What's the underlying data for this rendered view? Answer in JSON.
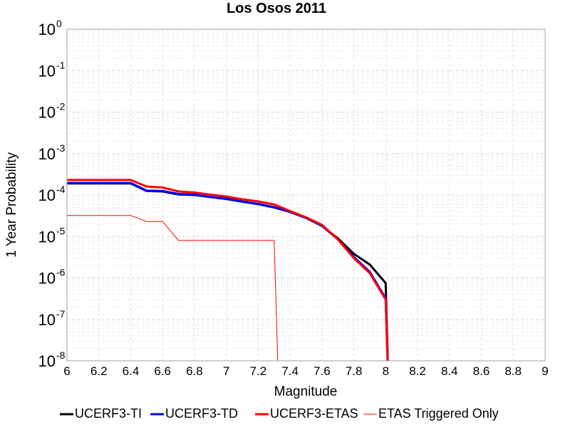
{
  "chart_data": {
    "type": "line",
    "title": "Los Osos 2011",
    "xlabel": "Magnitude",
    "ylabel": "1 Year Probability",
    "xlim": [
      6,
      9
    ],
    "ylim": [
      1e-08,
      1
    ],
    "yscale": "log",
    "grid": true,
    "legend_position": "bottom",
    "x_ticks": [
      "6",
      "6.2",
      "6.4",
      "6.6",
      "6.8",
      "7",
      "7.2",
      "7.4",
      "7.6",
      "7.8",
      "8",
      "8.2",
      "8.4",
      "8.6",
      "8.8",
      "9"
    ],
    "y_ticks": [
      {
        "base": "10",
        "exp": "-8",
        "value": 1e-08
      },
      {
        "base": "10",
        "exp": "-7",
        "value": 1e-07
      },
      {
        "base": "10",
        "exp": "-6",
        "value": 1e-06
      },
      {
        "base": "10",
        "exp": "-5",
        "value": 1e-05
      },
      {
        "base": "10",
        "exp": "-4",
        "value": 0.0001
      },
      {
        "base": "10",
        "exp": "-3",
        "value": 0.001
      },
      {
        "base": "10",
        "exp": "-2",
        "value": 0.01
      },
      {
        "base": "10",
        "exp": "-1",
        "value": 0.1
      },
      {
        "base": "10",
        "exp": "0",
        "value": 1
      }
    ],
    "series": [
      {
        "name": "UCERF3-TI",
        "color": "#000000",
        "width": 3,
        "x": [
          6.0,
          6.4,
          6.5,
          6.6,
          6.7,
          6.8,
          6.9,
          7.0,
          7.1,
          7.2,
          7.3,
          7.4,
          7.5,
          7.6,
          7.7,
          7.8,
          7.9,
          8.0,
          8.02
        ],
        "y": [
          0.00019,
          0.00019,
          0.000125,
          0.000122,
          0.000103,
          0.0001,
          8.9e-05,
          8e-05,
          6.9e-05,
          6e-05,
          5e-05,
          3.9e-05,
          2.8e-05,
          1.8e-05,
          9e-06,
          3.8e-06,
          2.1e-06,
          7.5e-07,
          1e-09
        ]
      },
      {
        "name": "UCERF3-TD",
        "color": "#0000ff",
        "width": 3,
        "x": [
          6.0,
          6.4,
          6.5,
          6.6,
          6.7,
          6.8,
          6.9,
          7.0,
          7.1,
          7.2,
          7.3,
          7.4,
          7.5,
          7.6,
          7.7,
          7.8,
          7.9,
          8.0,
          8.02
        ],
        "y": [
          0.000195,
          0.000195,
          0.000128,
          0.000125,
          0.000106,
          0.000102,
          9e-05,
          8.2e-05,
          7e-05,
          6.1e-05,
          5.1e-05,
          3.9e-05,
          2.8e-05,
          1.8e-05,
          8.5e-06,
          3.2e-06,
          1.4e-06,
          3.2e-07,
          1e-09
        ]
      },
      {
        "name": "UCERF3-ETAS",
        "color": "#ff0000",
        "width": 3,
        "x": [
          6.0,
          6.4,
          6.5,
          6.6,
          6.7,
          6.8,
          6.9,
          7.0,
          7.1,
          7.2,
          7.3,
          7.4,
          7.5,
          7.6,
          7.7,
          7.8,
          7.9,
          8.0,
          8.02
        ],
        "y": [
          0.00023,
          0.00023,
          0.00016,
          0.000152,
          0.000122,
          0.000115,
          0.000102,
          9.2e-05,
          7.9e-05,
          7e-05,
          5.9e-05,
          4.1e-05,
          2.9e-05,
          1.9e-05,
          8.5e-06,
          3e-06,
          1.3e-06,
          3e-07,
          1e-09
        ]
      },
      {
        "name": "ETAS Triggered Only",
        "color": "#ff0000",
        "width": 1,
        "x": [
          6.0,
          6.4,
          6.5,
          6.6,
          6.7,
          6.8,
          7.0,
          7.2,
          7.3,
          7.33
        ],
        "y": [
          3.2e-05,
          3.2e-05,
          2.3e-05,
          2.3e-05,
          8e-06,
          8e-06,
          8e-06,
          8e-06,
          8e-06,
          1e-09
        ]
      }
    ]
  }
}
